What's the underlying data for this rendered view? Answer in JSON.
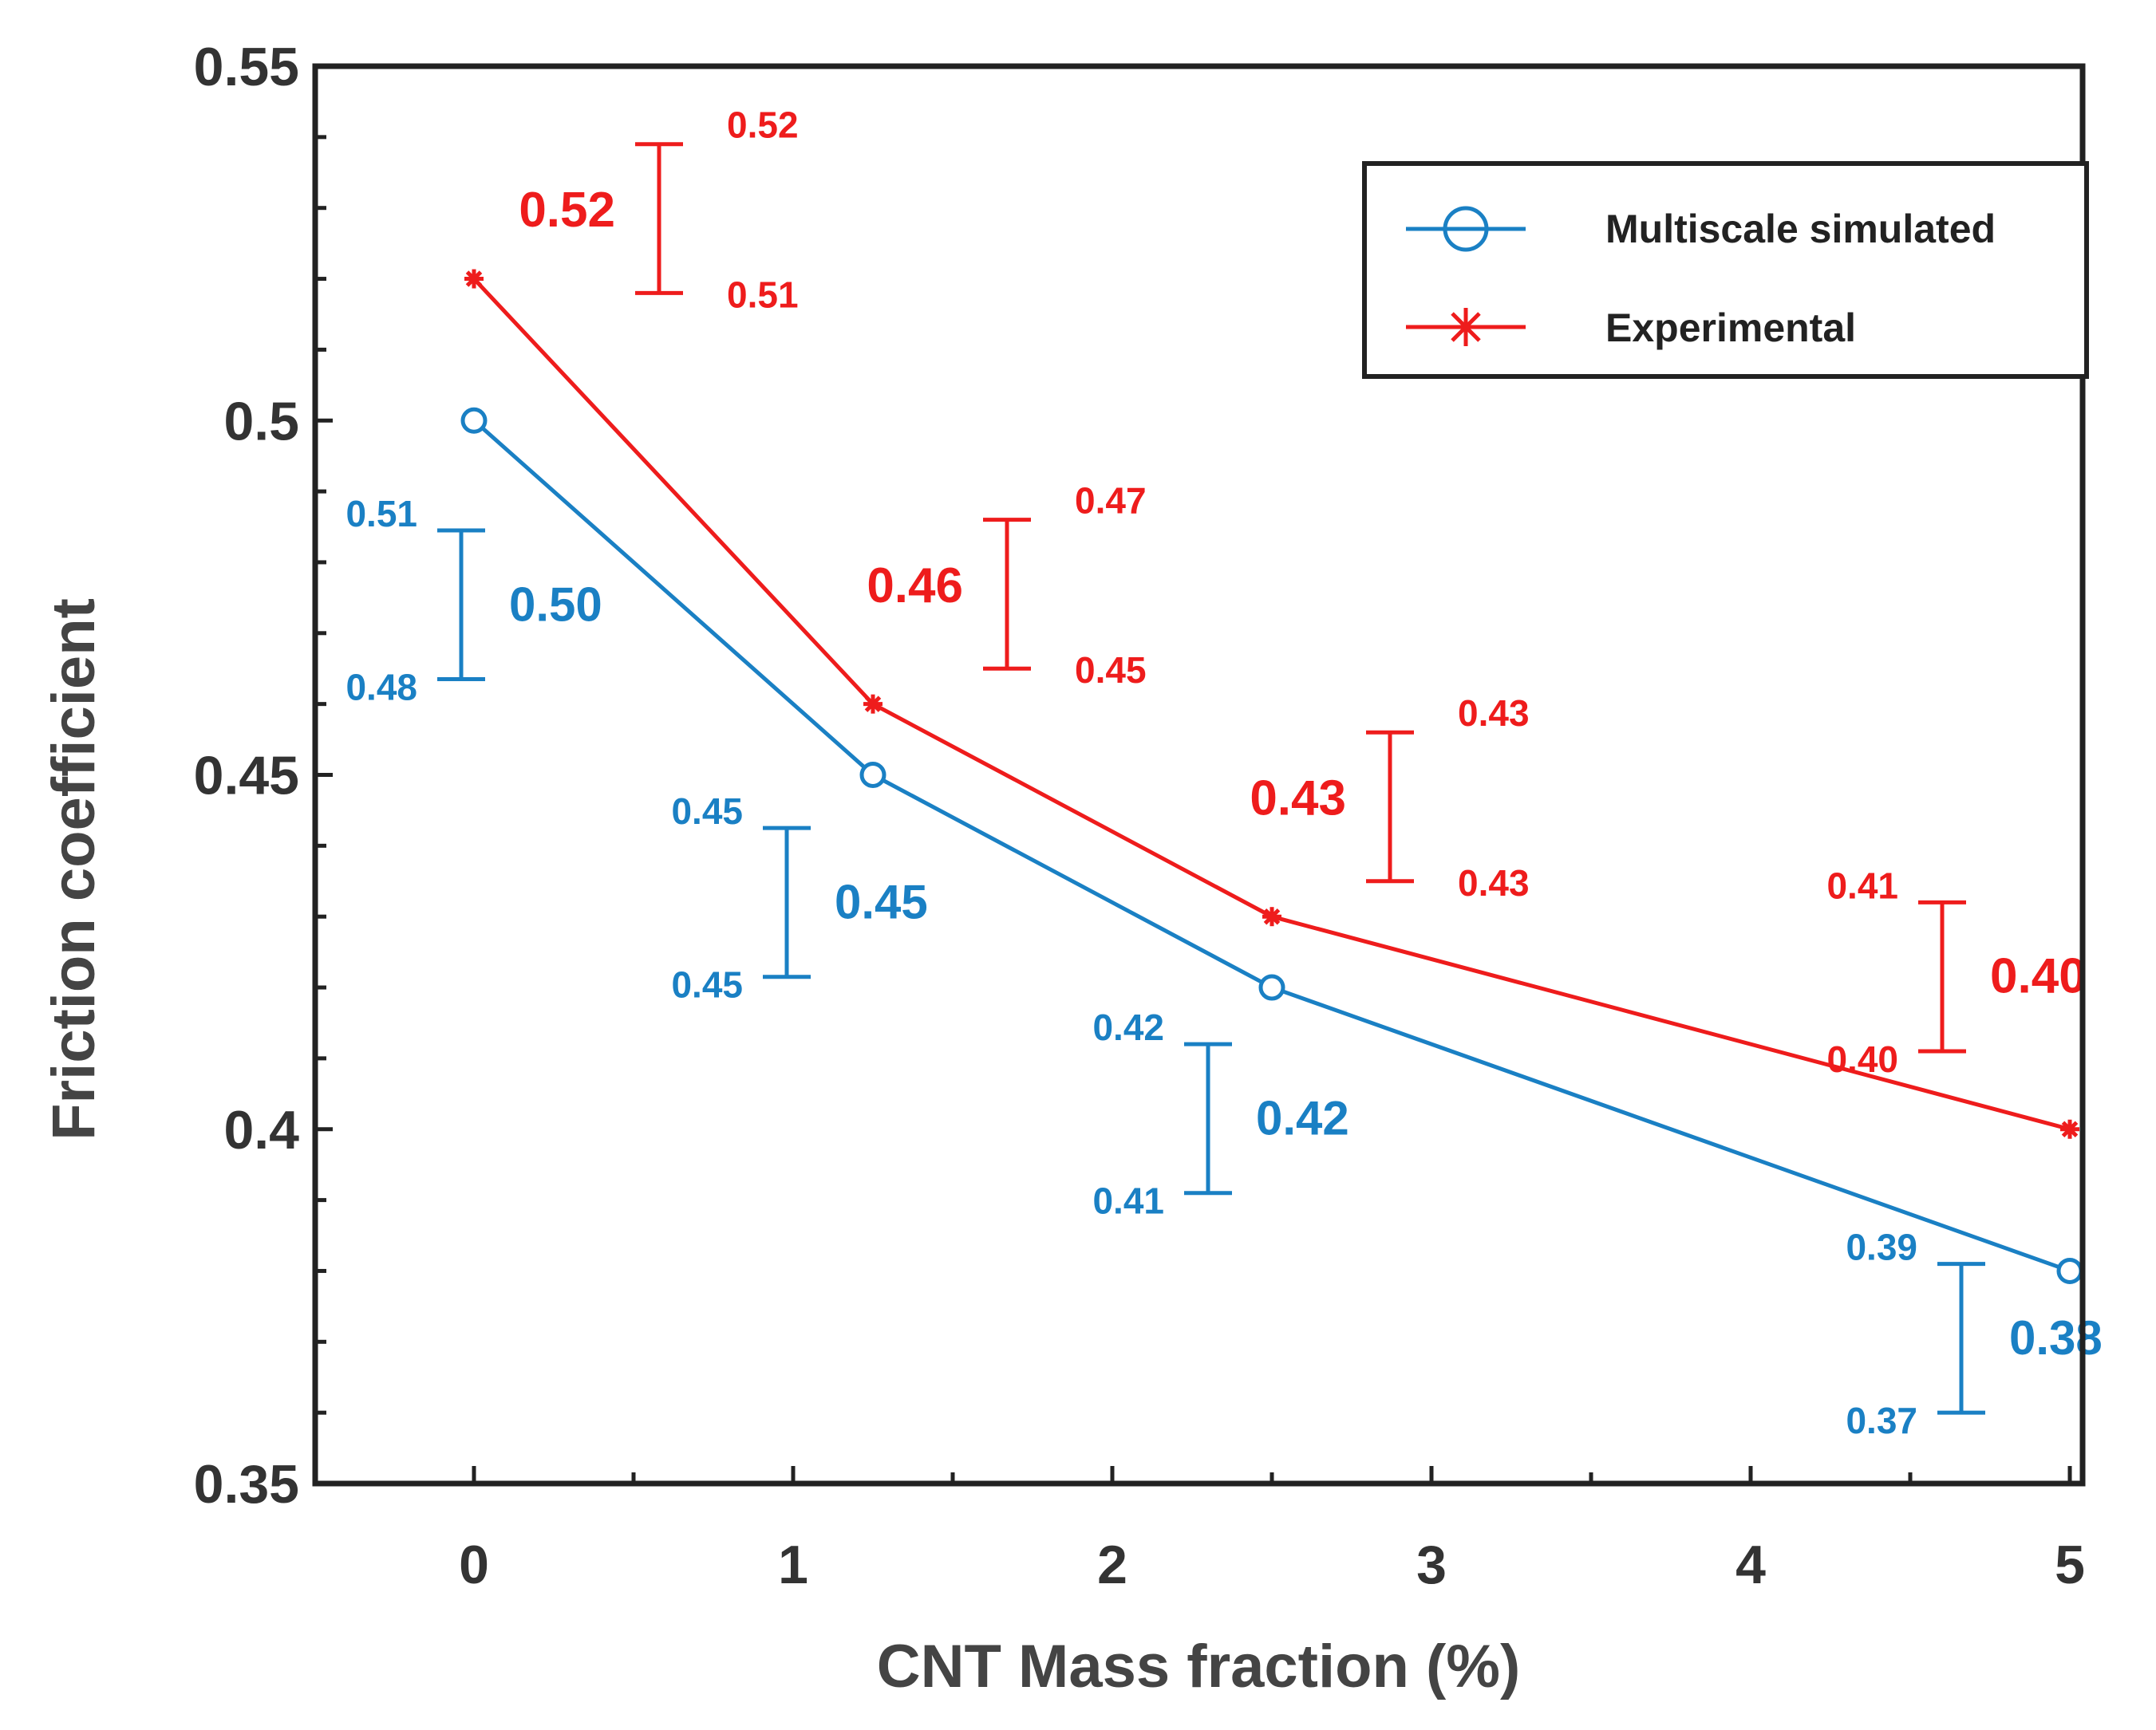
{
  "chart_data": {
    "type": "line",
    "title": "",
    "xlabel": "CNT Mass fraction (%)",
    "ylabel": "Friction coefficient",
    "xlim": [
      -0.5,
      5.1
    ],
    "ylim": [
      0.35,
      0.55
    ],
    "x_ticks": [
      0,
      1,
      2,
      3,
      4,
      5
    ],
    "y_ticks": [
      0.35,
      0.4,
      0.45,
      0.5,
      0.55
    ],
    "x_tick_labels": [
      "0",
      "1",
      "2",
      "3",
      "4",
      "5"
    ],
    "y_tick_labels": [
      "0.35",
      "0.4",
      "0.45",
      "0.5",
      "0.55"
    ],
    "grid": false,
    "legend_position": "top-right",
    "series": [
      {
        "name": "Multiscale simulated",
        "color": "#1a80c4",
        "marker": "circle",
        "x": [
          0,
          1.25,
          2.5,
          5
        ],
        "y": [
          0.5,
          0.45,
          0.42,
          0.38
        ]
      },
      {
        "name": "Experimental",
        "color": "#ee1c1c",
        "marker": "asterisk",
        "x": [
          0,
          1.25,
          2.5,
          5
        ],
        "y": [
          0.52,
          0.46,
          0.43,
          0.4
        ]
      }
    ],
    "annotations": [
      {
        "series": 1,
        "bar_x": 0.58,
        "bar_top": 0.539,
        "bar_bottom": 0.518,
        "upper_label": "0.52",
        "lower_label": "0.51",
        "main_label": "0.52",
        "label_side": "left",
        "minor_side": "right"
      },
      {
        "series": 1,
        "bar_x": 1.67,
        "bar_top": 0.486,
        "bar_bottom": 0.465,
        "upper_label": "0.47",
        "lower_label": "0.45",
        "main_label": "0.46",
        "label_side": "left",
        "minor_side": "right"
      },
      {
        "series": 1,
        "bar_x": 2.87,
        "bar_top": 0.456,
        "bar_bottom": 0.435,
        "upper_label": "0.43",
        "lower_label": "0.43",
        "main_label": "0.43",
        "label_side": "left",
        "minor_side": "right"
      },
      {
        "series": 1,
        "bar_x": 4.6,
        "bar_top": 0.432,
        "bar_bottom": 0.411,
        "upper_label": "0.41",
        "lower_label": "0.40",
        "main_label": "0.40",
        "label_side": "right",
        "minor_side": "left"
      },
      {
        "series": 0,
        "bar_x": -0.04,
        "bar_top": 0.4845,
        "bar_bottom": 0.4635,
        "upper_label": "0.51",
        "lower_label": "0.48",
        "main_label": "0.50",
        "label_side": "right",
        "minor_side": "left"
      },
      {
        "series": 0,
        "bar_x": -0.04,
        "bar_top": 0.4425,
        "bar_bottom": 0.4215,
        "upper_label": "0.45",
        "lower_label": "0.45",
        "main_label": "0.45",
        "label_side": "right",
        "minor_side": "left",
        "bar_x_override": 0.98
      },
      {
        "series": 0,
        "bar_x": 2.3,
        "bar_top": 0.412,
        "bar_bottom": 0.391,
        "upper_label": "0.42",
        "lower_label": "0.41",
        "main_label": "0.42",
        "label_side": "right",
        "minor_side": "left"
      },
      {
        "series": 0,
        "bar_x": 4.66,
        "bar_top": 0.381,
        "bar_bottom": 0.36,
        "upper_label": "0.39",
        "lower_label": "0.37",
        "main_label": "0.38",
        "label_side": "right",
        "minor_side": "left"
      }
    ]
  }
}
